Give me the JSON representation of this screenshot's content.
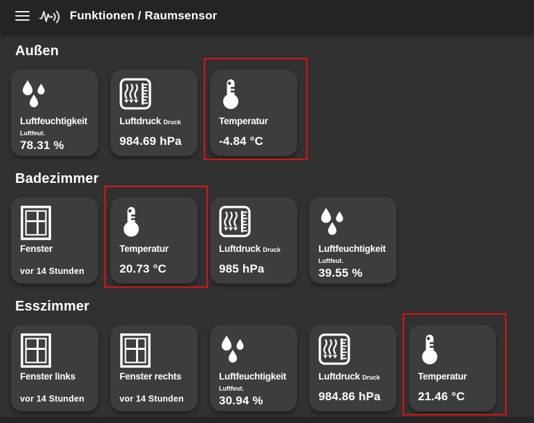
{
  "header": {
    "title": "Funktionen / Raumsensor",
    "menu_icon": "hamburger-menu-icon",
    "logo_icon": "sensor-logo-icon"
  },
  "colors": {
    "highlight_red": "#e01212",
    "tile_background": "#3d3d3d",
    "page_background": "#313131",
    "topbar_background": "#242424",
    "text": "#ffffff"
  },
  "sections": [
    {
      "title": "Außen",
      "tiles": [
        {
          "icon": "humidity-icon",
          "title": "Luftfeuchtigkeit",
          "subtitle": "Luftfeut.",
          "value": "78.31 %",
          "highlighted": false
        },
        {
          "icon": "pressure-icon",
          "title": "Luftdruck",
          "subtitle": "Druck",
          "value": "984.69 hPa",
          "highlighted": false
        },
        {
          "icon": "temperature-icon",
          "title": "Temperatur",
          "subtitle": "",
          "value": "-4.84 °C",
          "highlighted": true
        }
      ]
    },
    {
      "title": "Badezimmer",
      "tiles": [
        {
          "icon": "window-icon",
          "title": "Fenster",
          "subtitle": "",
          "value": "vor 14 Stunden",
          "value_small": true,
          "highlighted": false
        },
        {
          "icon": "temperature-icon",
          "title": "Temperatur",
          "subtitle": "",
          "value": "20.73 °C",
          "highlighted": true
        },
        {
          "icon": "pressure-icon",
          "title": "Luftdruck",
          "subtitle": "Druck",
          "value": "985 hPa",
          "highlighted": false
        },
        {
          "icon": "humidity-icon",
          "title": "Luftfeuchtigkeit",
          "subtitle": "Luftfeut.",
          "value": "39.55 %",
          "highlighted": false
        }
      ]
    },
    {
      "title": "Esszimmer",
      "tiles": [
        {
          "icon": "window-icon",
          "title": "Fenster links",
          "subtitle": "",
          "value": "vor 14 Stunden",
          "value_small": true,
          "highlighted": false
        },
        {
          "icon": "window-icon",
          "title": "Fenster rechts",
          "subtitle": "",
          "value": "vor 14 Stunden",
          "value_small": true,
          "highlighted": false
        },
        {
          "icon": "humidity-icon",
          "title": "Luftfeuchtigkeit",
          "subtitle": "Luftfeut.",
          "value": "30.94 %",
          "highlighted": false
        },
        {
          "icon": "pressure-icon",
          "title": "Luftdruck",
          "subtitle": "Druck",
          "value": "984.86 hPa",
          "highlighted": false
        },
        {
          "icon": "temperature-icon",
          "title": "Temperatur",
          "subtitle": "",
          "value": "21.46 °C",
          "highlighted": true
        }
      ]
    }
  ]
}
